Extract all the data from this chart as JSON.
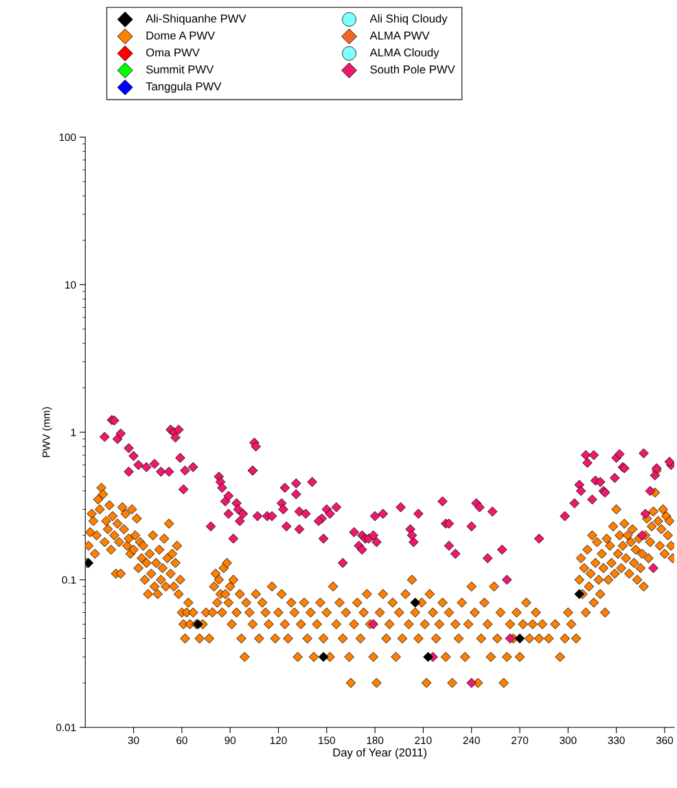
{
  "chart_data": {
    "type": "scatter",
    "xlabel": "Day of Year (2011)",
    "ylabel": "PWV (mm)",
    "xlim": [
      0,
      366
    ],
    "xticks": [
      30,
      60,
      90,
      120,
      150,
      180,
      210,
      240,
      270,
      300,
      330,
      360
    ],
    "log": "y",
    "ylim": [
      0.01,
      100
    ],
    "yticks": [
      0.01,
      0.1,
      1,
      10,
      100
    ],
    "grid": false,
    "legend": "top",
    "series": [
      {
        "name": "Ali-Shiquanhe PWV",
        "color": "#000000",
        "marker": "diamond",
        "x": [
          2,
          70,
          148,
          205,
          213,
          270,
          307
        ],
        "values": [
          0.13,
          0.05,
          0.03,
          0.07,
          0.03,
          0.04,
          0.08
        ]
      },
      {
        "name": "Dome A PWV",
        "color": "#ff7f00",
        "marker": "diamond",
        "x": [
          1,
          2,
          3,
          4,
          5,
          6,
          7,
          8,
          9,
          10,
          11,
          12,
          13,
          14,
          15,
          16,
          17,
          18,
          19,
          20,
          21,
          22,
          23,
          24,
          25,
          26,
          27,
          28,
          29,
          30,
          31,
          32,
          33,
          34,
          35,
          36,
          37,
          38,
          39,
          40,
          41,
          42,
          43,
          44,
          45,
          46,
          47,
          48,
          49,
          50,
          51,
          52,
          53,
          54,
          55,
          56,
          57,
          58,
          59,
          60,
          61,
          62,
          63,
          64,
          65,
          67,
          69,
          71,
          73,
          75,
          77,
          79,
          80,
          81,
          82,
          83,
          84,
          85,
          86,
          87,
          88,
          89,
          90,
          91,
          92,
          94,
          96,
          97,
          99,
          100,
          102,
          104,
          106,
          108,
          110,
          112,
          114,
          116,
          118,
          120,
          122,
          124,
          126,
          128,
          130,
          132,
          134,
          136,
          138,
          140,
          142,
          144,
          146,
          148,
          150,
          152,
          154,
          156,
          158,
          160,
          162,
          164,
          165,
          167,
          169,
          171,
          173,
          175,
          177,
          179,
          181,
          183,
          185,
          187,
          189,
          191,
          193,
          195,
          197,
          199,
          201,
          203,
          205,
          207,
          209,
          211,
          212,
          214,
          216,
          218,
          220,
          222,
          224,
          226,
          228,
          230,
          232,
          234,
          236,
          238,
          240,
          242,
          244,
          246,
          248,
          250,
          252,
          254,
          256,
          258,
          260,
          262,
          264,
          266,
          268,
          270,
          272,
          274,
          276,
          278,
          280,
          282,
          284,
          288,
          292,
          295,
          298,
          300,
          302,
          305,
          307,
          308,
          309,
          310,
          311,
          312,
          313,
          314,
          315,
          316,
          317,
          318,
          319,
          320,
          321,
          322,
          323,
          324,
          325,
          326,
          327,
          328,
          329,
          330,
          331,
          332,
          333,
          334,
          335,
          336,
          337,
          338,
          339,
          340,
          341,
          342,
          343,
          344,
          345,
          346,
          347,
          348,
          349,
          350,
          351,
          352,
          353,
          354,
          355,
          356,
          357,
          358,
          359,
          360,
          361,
          362,
          363,
          364,
          365
        ],
        "values": [
          0.13,
          0.17,
          0.21,
          0.28,
          0.25,
          0.15,
          0.2,
          0.35,
          0.3,
          0.42,
          0.38,
          0.18,
          0.25,
          0.22,
          0.32,
          0.16,
          0.27,
          0.2,
          0.11,
          0.24,
          0.18,
          0.11,
          0.31,
          0.22,
          0.28,
          0.17,
          0.19,
          0.15,
          0.3,
          0.16,
          0.2,
          0.26,
          0.12,
          0.18,
          0.14,
          0.17,
          0.1,
          0.13,
          0.08,
          0.15,
          0.11,
          0.2,
          0.09,
          0.13,
          0.08,
          0.16,
          0.1,
          0.12,
          0.19,
          0.09,
          0.14,
          0.24,
          0.11,
          0.15,
          0.09,
          0.13,
          0.17,
          0.08,
          0.1,
          0.06,
          0.05,
          0.04,
          0.06,
          0.07,
          0.05,
          0.06,
          0.05,
          0.04,
          0.05,
          0.06,
          0.04,
          0.06,
          0.09,
          0.11,
          0.07,
          0.1,
          0.08,
          0.06,
          0.12,
          0.08,
          0.13,
          0.07,
          0.09,
          0.05,
          0.1,
          0.06,
          0.08,
          0.04,
          0.03,
          0.07,
          0.06,
          0.05,
          0.08,
          0.04,
          0.07,
          0.06,
          0.05,
          0.09,
          0.04,
          0.06,
          0.08,
          0.05,
          0.04,
          0.07,
          0.06,
          0.03,
          0.05,
          0.07,
          0.04,
          0.06,
          0.03,
          0.05,
          0.07,
          0.04,
          0.06,
          0.03,
          0.09,
          0.05,
          0.07,
          0.04,
          0.06,
          0.03,
          0.02,
          0.05,
          0.07,
          0.04,
          0.06,
          0.08,
          0.05,
          0.03,
          0.02,
          0.06,
          0.08,
          0.04,
          0.05,
          0.07,
          0.03,
          0.06,
          0.04,
          0.08,
          0.05,
          0.1,
          0.06,
          0.04,
          0.07,
          0.05,
          0.02,
          0.08,
          0.06,
          0.04,
          0.05,
          0.07,
          0.03,
          0.06,
          0.02,
          0.05,
          0.04,
          0.07,
          0.03,
          0.05,
          0.09,
          0.06,
          0.02,
          0.04,
          0.07,
          0.05,
          0.03,
          0.09,
          0.04,
          0.06,
          0.02,
          0.03,
          0.05,
          0.04,
          0.06,
          0.03,
          0.05,
          0.07,
          0.04,
          0.05,
          0.06,
          0.04,
          0.05,
          0.04,
          0.05,
          0.03,
          0.04,
          0.06,
          0.05,
          0.04,
          0.1,
          0.14,
          0.08,
          0.12,
          0.06,
          0.16,
          0.09,
          0.11,
          0.2,
          0.07,
          0.13,
          0.18,
          0.1,
          0.08,
          0.15,
          0.12,
          0.06,
          0.19,
          0.1,
          0.17,
          0.13,
          0.23,
          0.11,
          0.3,
          0.15,
          0.2,
          0.12,
          0.17,
          0.24,
          0.14,
          0.2,
          0.11,
          0.18,
          0.22,
          0.13,
          0.16,
          0.1,
          0.19,
          0.12,
          0.15,
          0.09,
          0.2,
          0.26,
          0.14,
          0.18,
          0.23,
          0.29,
          0.39,
          0.55,
          0.25,
          0.17,
          0.22,
          0.3,
          0.15,
          0.27,
          0.2,
          0.25,
          0.17,
          0.14
        ]
      },
      {
        "name": "Oma PWV",
        "color": "#ff0000",
        "marker": "diamond"
      },
      {
        "name": "Summit PWV",
        "color": "#00ff00",
        "marker": "diamond"
      },
      {
        "name": "Tanggula PWV",
        "color": "#0000ff",
        "marker": "diamond"
      },
      {
        "name": "Ali Shiq Cloudy",
        "color": "#80ffff",
        "marker": "circle"
      },
      {
        "name": "ALMA PWV",
        "color": "#f26522",
        "marker": "diamond"
      },
      {
        "name": "ALMA Cloudy",
        "color": "#80ffff",
        "marker": "circle"
      },
      {
        "name": "South Pole PWV",
        "color": "#f0186e",
        "marker": "diamond",
        "x": [
          16.5,
          18,
          12,
          20,
          22,
          27,
          27,
          30,
          33,
          38,
          43,
          47,
          52,
          53,
          55,
          56,
          58,
          59,
          62,
          67,
          61,
          78,
          83,
          84,
          85,
          87,
          89,
          89,
          92,
          94,
          95,
          98,
          96,
          104,
          105,
          106,
          104,
          107,
          113,
          116,
          122,
          123,
          124,
          125,
          131,
          131,
          133,
          133,
          137,
          141,
          147,
          145,
          148,
          150,
          156,
          152,
          160,
          167,
          170,
          172,
          174,
          172,
          176,
          180,
          181,
          179,
          185,
          196,
          202,
          204,
          203,
          207,
          222,
          224,
          226,
          226,
          230,
          240,
          243,
          245,
          250,
          253,
          259,
          262,
          282,
          298,
          304,
          307,
          308,
          311,
          312,
          315,
          316,
          317,
          320,
          322,
          323,
          329,
          330,
          332,
          334,
          335,
          347,
          348,
          346,
          351,
          354,
          355,
          353,
          364,
          363,
          179,
          264,
          240,
          216
        ],
        "values": [
          1.21,
          1.2,
          0.93,
          0.9,
          0.98,
          0.78,
          0.54,
          0.69,
          0.6,
          0.58,
          0.61,
          0.54,
          0.54,
          1.04,
          1.0,
          0.92,
          1.04,
          0.67,
          0.55,
          0.58,
          0.41,
          0.23,
          0.5,
          0.46,
          0.42,
          0.34,
          0.37,
          0.28,
          0.19,
          0.33,
          0.3,
          0.28,
          0.25,
          0.55,
          0.85,
          0.8,
          0.55,
          0.27,
          0.27,
          0.27,
          0.33,
          0.3,
          0.42,
          0.23,
          0.45,
          0.38,
          0.29,
          0.22,
          0.28,
          0.46,
          0.26,
          0.25,
          0.19,
          0.3,
          0.31,
          0.28,
          0.13,
          0.21,
          0.17,
          0.2,
          0.19,
          0.16,
          0.19,
          0.27,
          0.18,
          0.2,
          0.28,
          0.31,
          0.22,
          0.18,
          0.2,
          0.28,
          0.34,
          0.24,
          0.24,
          0.17,
          0.15,
          0.23,
          0.33,
          0.31,
          0.14,
          0.29,
          0.16,
          0.1,
          0.19,
          0.27,
          0.33,
          0.44,
          0.4,
          0.7,
          0.62,
          0.35,
          0.7,
          0.47,
          0.46,
          0.4,
          0.39,
          0.49,
          0.67,
          0.71,
          0.58,
          0.57,
          0.72,
          0.28,
          0.2,
          0.4,
          0.51,
          0.57,
          0.12,
          0.6,
          0.63,
          0.05,
          0.04,
          0.02,
          0.03
        ]
      }
    ]
  }
}
